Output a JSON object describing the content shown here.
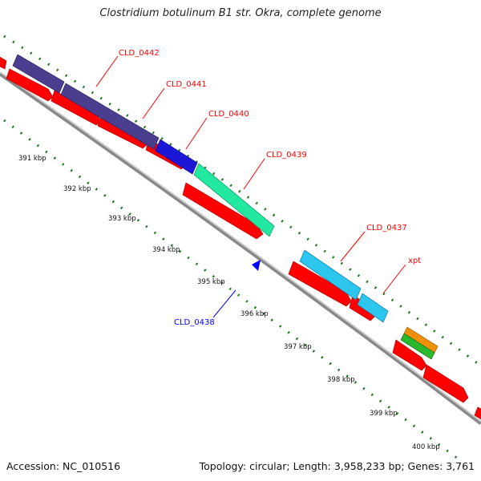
{
  "title": "Clostridium botulinum B1 str. Okra, complete genome",
  "footer": {
    "accession": "Accession: NC_010516",
    "summary": "Topology: circular; Length: 3,958,233 bp; Genes: 3,761"
  },
  "colors": {
    "cds": "#ff0000",
    "backbone": "#8a8a8a",
    "ticks": "#1a7a1a",
    "label_red": "#ff0000",
    "label_blue": "#0000ff"
  },
  "ticks": [
    {
      "label": "391 kbp"
    },
    {
      "label": "392 kbp"
    },
    {
      "label": "393 kbp"
    },
    {
      "label": "394 kbp"
    },
    {
      "label": "395 kbp"
    },
    {
      "label": "396 kbp"
    },
    {
      "label": "397 kbp"
    },
    {
      "label": "398 kbp"
    },
    {
      "label": "399 kbp"
    },
    {
      "label": "400 kbp"
    }
  ],
  "genes": [
    {
      "name": "CLD_0442",
      "color": "#4a3f8e"
    },
    {
      "name": "CLD_0441",
      "color": "#4a3f8e"
    },
    {
      "name": "CLD_0440",
      "color": "#1c16d6"
    },
    {
      "name": "CLD_0439",
      "color": "#22e8a0"
    },
    {
      "name": "CLD_0437",
      "color": "#2cc6ee"
    },
    {
      "name": "xpt",
      "color": "#2cc6ee"
    },
    {
      "name": "CLD_0438",
      "color": "#0000ff"
    }
  ]
}
